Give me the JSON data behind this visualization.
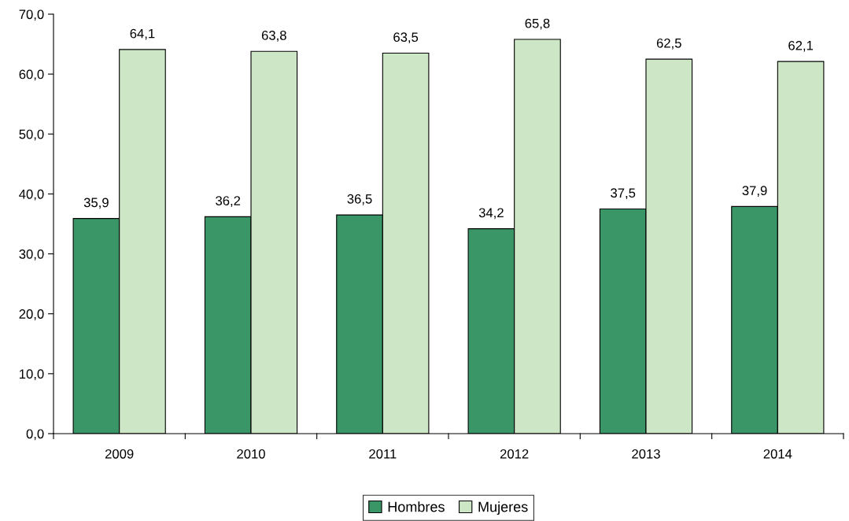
{
  "chart_data": {
    "type": "bar",
    "categories": [
      "2009",
      "2010",
      "2011",
      "2012",
      "2013",
      "2014"
    ],
    "series": [
      {
        "name": "Hombres",
        "color": "#3a9667",
        "values": [
          35.9,
          36.2,
          36.5,
          34.2,
          37.5,
          37.9
        ],
        "value_labels": [
          "35,9",
          "36,2",
          "36,5",
          "34,2",
          "37,5",
          "37,9"
        ]
      },
      {
        "name": "Mujeres",
        "color": "#cde6c6",
        "values": [
          64.1,
          63.8,
          63.5,
          65.8,
          62.5,
          62.1
        ],
        "value_labels": [
          "64,1",
          "63,8",
          "63,5",
          "65,8",
          "62,5",
          "62,1"
        ]
      }
    ],
    "ylim": [
      0,
      70
    ],
    "yticks": [
      {
        "value": 0,
        "label": "0,0"
      },
      {
        "value": 10,
        "label": "10,0"
      },
      {
        "value": 20,
        "label": "20,0"
      },
      {
        "value": 30,
        "label": "30,0"
      },
      {
        "value": 40,
        "label": "40,0"
      },
      {
        "value": 50,
        "label": "50,0"
      },
      {
        "value": 60,
        "label": "60,0"
      },
      {
        "value": 70,
        "label": "70,0"
      }
    ],
    "grid": false,
    "legend": "bottom"
  }
}
